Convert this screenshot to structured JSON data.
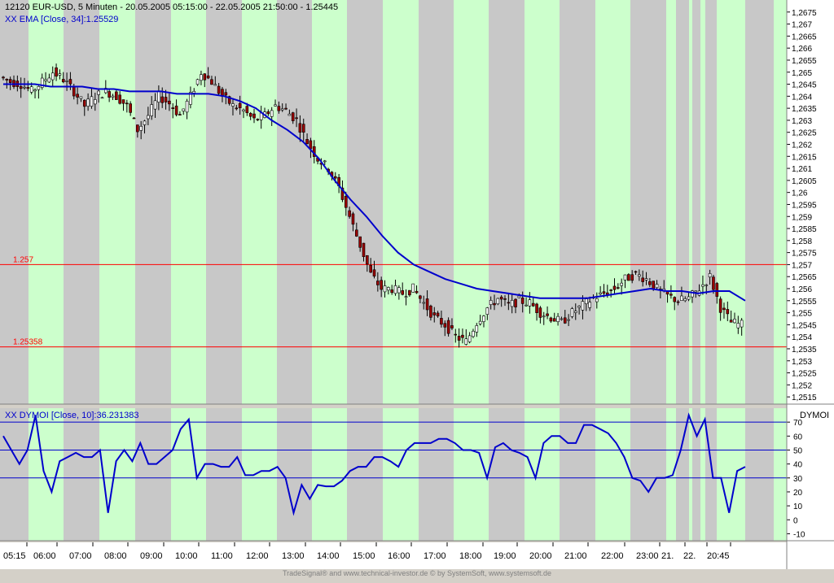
{
  "chart_data": [
    {
      "type": "candlestick",
      "header": {
        "title": "12120  EUR-USD, 5 Minuten - 20.05.2005 05:15:00 - 22.05.2005 21:50:00 - 1.25445",
        "indicator": "XX EMA [Close, 34]:1.25529"
      },
      "ylim": [
        1.2512,
        1.268
      ],
      "y_ticks": [
        "1,2675",
        "1,267",
        "1,2665",
        "1,266",
        "1,2655",
        "1,265",
        "1,2645",
        "1,264",
        "1,2635",
        "1,263",
        "1,2625",
        "1,262",
        "1,2615",
        "1,261",
        "1,2605",
        "1,26",
        "1,2595",
        "1,259",
        "1,2585",
        "1,258",
        "1,2575",
        "1,257",
        "1,2565",
        "1,256",
        "1,2555",
        "1,255",
        "1,2545",
        "1,254",
        "1,2535",
        "1,253",
        "1,2525",
        "1,252",
        "1,2515"
      ],
      "hlines": [
        {
          "label": "1.257",
          "value": 1.257,
          "color": "#ff0000"
        },
        {
          "label": "1.25358",
          "value": 1.25358,
          "color": "#ff0000"
        }
      ],
      "price_series": [
        1.2648,
        1.2646,
        1.2645,
        1.2642,
        1.2646,
        1.265,
        1.2647,
        1.2642,
        1.2636,
        1.264,
        1.2642,
        1.264,
        1.2636,
        1.2626,
        1.2632,
        1.264,
        1.2637,
        1.2632,
        1.264,
        1.265,
        1.2646,
        1.264,
        1.2636,
        1.2634,
        1.263,
        1.2632,
        1.2636,
        1.2634,
        1.263,
        1.2621,
        1.2614,
        1.261,
        1.2602,
        1.259,
        1.2578,
        1.2566,
        1.256,
        1.256,
        1.2558,
        1.256,
        1.2554,
        1.2548,
        1.2545,
        1.254,
        1.2538,
        1.2546,
        1.2552,
        1.2556,
        1.2553,
        1.2555,
        1.2554,
        1.255,
        1.2548,
        1.2546,
        1.255,
        1.2553,
        1.2556,
        1.2558,
        1.256,
        1.2564,
        1.2566,
        1.2564,
        1.256,
        1.2557,
        1.2555,
        1.2556,
        1.256,
        1.2565,
        1.2552,
        1.2546,
        1.2545
      ],
      "ema_series": [
        1.2645,
        1.2645,
        1.2645,
        1.2644,
        1.2644,
        1.2644,
        1.2643,
        1.2643,
        1.2642,
        1.2642,
        1.2642,
        1.2641,
        1.2641,
        1.2641,
        1.264,
        1.2638,
        1.2635,
        1.263,
        1.2626,
        1.2621,
        1.2614,
        1.2605,
        1.2597,
        1.259,
        1.2582,
        1.2575,
        1.257,
        1.2567,
        1.2564,
        1.2562,
        1.256,
        1.2559,
        1.2558,
        1.2557,
        1.2556,
        1.2556,
        1.2556,
        1.2556,
        1.2557,
        1.2558,
        1.2559,
        1.256,
        1.2559,
        1.2559,
        1.2558,
        1.2559,
        1.2559,
        1.2555
      ]
    },
    {
      "type": "line",
      "header": {
        "indicator": "XX DYMOI [Close, 10]:36.231383"
      },
      "axis_title": "DYMOI",
      "ylim": [
        -15,
        80
      ],
      "y_ticks": [
        "70",
        "60",
        "50",
        "40",
        "30",
        "20",
        "10",
        "0",
        "-10"
      ],
      "hlines": [
        70,
        50,
        30
      ],
      "series": [
        60,
        50,
        40,
        50,
        75,
        35,
        20,
        42,
        45,
        48,
        45,
        45,
        50,
        5,
        42,
        50,
        42,
        55,
        40,
        40,
        45,
        50,
        65,
        72,
        30,
        40,
        40,
        38,
        38,
        45,
        32,
        32,
        35,
        35,
        38,
        30,
        5,
        25,
        15,
        25,
        24,
        24,
        28,
        35,
        38,
        38,
        45,
        45,
        42,
        38,
        50,
        55,
        55,
        55,
        58,
        58,
        55,
        50,
        50,
        48,
        30,
        52,
        55,
        50,
        48,
        45,
        30,
        55,
        60,
        60,
        55,
        55,
        68,
        68,
        65,
        62,
        55,
        45,
        30,
        28,
        20,
        30,
        30,
        32,
        50,
        75,
        60,
        72,
        30,
        30,
        5,
        35,
        38
      ]
    }
  ],
  "x_ticks": [
    "05:15",
    "06:00",
    "07:00",
    "08:00",
    "09:00",
    "10:00",
    "11:00",
    "12:00",
    "13:00",
    "14:00",
    "15:00",
    "16:00",
    "17:00",
    "18:00",
    "19:00",
    "20:00",
    "21:00",
    "22:00",
    "23:00",
    "21.",
    "22.",
    "20:45"
  ],
  "footer": "TradeSignal® and www.technical-investor.de © by SystemSoft, www.systemsoft.de",
  "colors": {
    "green_band": "#ccffcc",
    "gray_band": "#c8c8c8",
    "candle_up": "#ffffff",
    "candle_down": "#990000",
    "ema": "#0000cc"
  }
}
